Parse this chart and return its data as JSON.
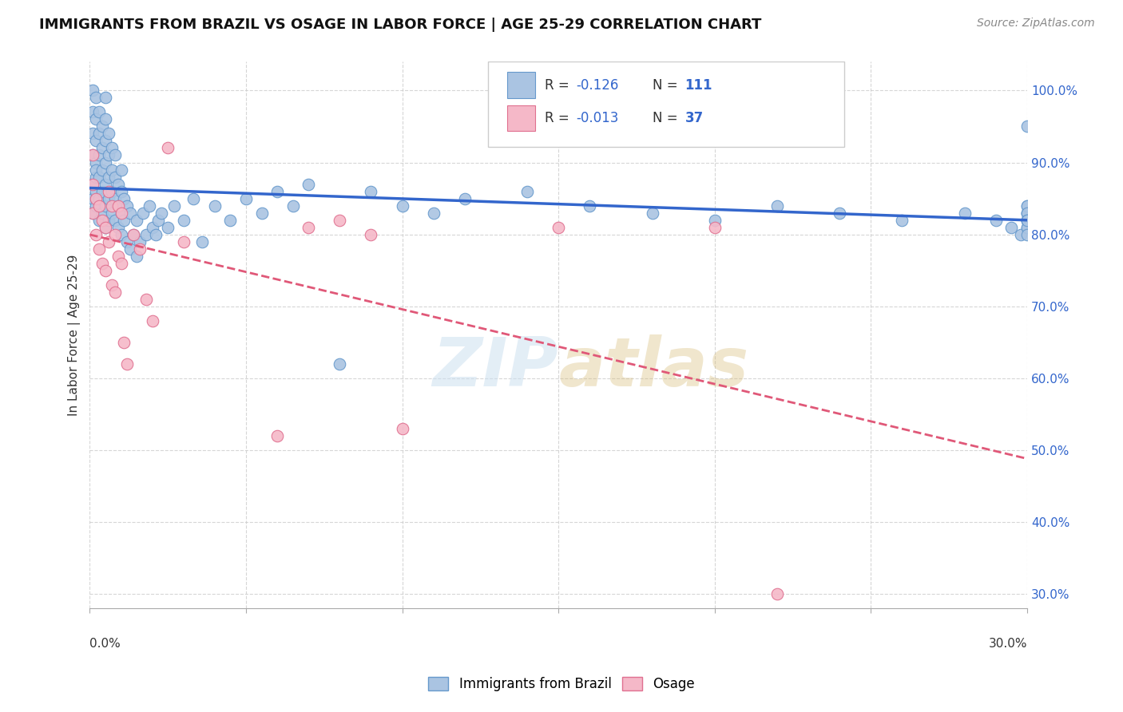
{
  "title": "IMMIGRANTS FROM BRAZIL VS OSAGE IN LABOR FORCE | AGE 25-29 CORRELATION CHART",
  "source": "Source: ZipAtlas.com",
  "ylabel": "In Labor Force | Age 25-29",
  "xlim": [
    0.0,
    0.3
  ],
  "ylim": [
    0.28,
    1.04
  ],
  "yticks": [
    0.3,
    0.4,
    0.5,
    0.6,
    0.7,
    0.8,
    0.9,
    1.0
  ],
  "ytick_labels": [
    "30.0%",
    "40.0%",
    "50.0%",
    "60.0%",
    "70.0%",
    "80.0%",
    "90.0%",
    "100.0%"
  ],
  "xticks": [
    0.0,
    0.05,
    0.1,
    0.15,
    0.2,
    0.25,
    0.3
  ],
  "brazil_color": "#aac4e2",
  "brazil_edge": "#6699cc",
  "osage_color": "#f5b8c8",
  "osage_edge": "#e07090",
  "brazil_line_color": "#3366cc",
  "osage_line_color": "#e05878",
  "R_brazil": -0.126,
  "N_brazil": 111,
  "R_osage": -0.013,
  "N_osage": 37,
  "legend_labels": [
    "Immigrants from Brazil",
    "Osage"
  ],
  "watermark_color": "#cce0f0",
  "brazil_x": [
    0.001,
    0.001,
    0.001,
    0.001,
    0.001,
    0.001,
    0.001,
    0.002,
    0.002,
    0.002,
    0.002,
    0.002,
    0.002,
    0.002,
    0.002,
    0.003,
    0.003,
    0.003,
    0.003,
    0.003,
    0.003,
    0.004,
    0.004,
    0.004,
    0.004,
    0.004,
    0.005,
    0.005,
    0.005,
    0.005,
    0.005,
    0.005,
    0.005,
    0.006,
    0.006,
    0.006,
    0.006,
    0.006,
    0.007,
    0.007,
    0.007,
    0.007,
    0.008,
    0.008,
    0.008,
    0.008,
    0.009,
    0.009,
    0.009,
    0.01,
    0.01,
    0.01,
    0.01,
    0.011,
    0.011,
    0.012,
    0.012,
    0.013,
    0.013,
    0.014,
    0.015,
    0.015,
    0.016,
    0.017,
    0.018,
    0.019,
    0.02,
    0.021,
    0.022,
    0.023,
    0.025,
    0.027,
    0.03,
    0.033,
    0.036,
    0.04,
    0.045,
    0.05,
    0.055,
    0.06,
    0.065,
    0.07,
    0.08,
    0.09,
    0.1,
    0.11,
    0.12,
    0.14,
    0.16,
    0.18,
    0.2,
    0.22,
    0.24,
    0.26,
    0.28,
    0.29,
    0.295,
    0.298,
    0.3,
    0.3,
    0.3,
    0.3,
    0.3,
    0.3,
    0.3,
    0.3,
    0.3,
    0.3,
    0.3,
    0.3,
    0.3
  ],
  "brazil_y": [
    0.87,
    0.91,
    0.94,
    0.97,
    1.0,
    0.83,
    0.85,
    0.88,
    0.9,
    0.93,
    0.96,
    0.99,
    0.84,
    0.86,
    0.89,
    0.82,
    0.85,
    0.88,
    0.91,
    0.94,
    0.97,
    0.83,
    0.86,
    0.89,
    0.92,
    0.95,
    0.81,
    0.84,
    0.87,
    0.9,
    0.93,
    0.96,
    0.99,
    0.82,
    0.85,
    0.88,
    0.91,
    0.94,
    0.83,
    0.86,
    0.89,
    0.92,
    0.82,
    0.85,
    0.88,
    0.91,
    0.81,
    0.84,
    0.87,
    0.8,
    0.83,
    0.86,
    0.89,
    0.82,
    0.85,
    0.79,
    0.84,
    0.78,
    0.83,
    0.8,
    0.77,
    0.82,
    0.79,
    0.83,
    0.8,
    0.84,
    0.81,
    0.8,
    0.82,
    0.83,
    0.81,
    0.84,
    0.82,
    0.85,
    0.79,
    0.84,
    0.82,
    0.85,
    0.83,
    0.86,
    0.84,
    0.87,
    0.62,
    0.86,
    0.84,
    0.83,
    0.85,
    0.86,
    0.84,
    0.83,
    0.82,
    0.84,
    0.83,
    0.82,
    0.83,
    0.82,
    0.81,
    0.8,
    0.82,
    0.81,
    0.83,
    0.82,
    0.84,
    0.83,
    0.95,
    0.84,
    0.83,
    0.82,
    0.81,
    0.8,
    0.82
  ],
  "osage_x": [
    0.001,
    0.001,
    0.001,
    0.002,
    0.002,
    0.003,
    0.003,
    0.004,
    0.004,
    0.005,
    0.005,
    0.006,
    0.006,
    0.007,
    0.007,
    0.008,
    0.008,
    0.009,
    0.009,
    0.01,
    0.01,
    0.011,
    0.012,
    0.014,
    0.016,
    0.018,
    0.02,
    0.025,
    0.03,
    0.06,
    0.07,
    0.08,
    0.09,
    0.1,
    0.15,
    0.2,
    0.22
  ],
  "osage_y": [
    0.83,
    0.87,
    0.91,
    0.8,
    0.85,
    0.78,
    0.84,
    0.76,
    0.82,
    0.75,
    0.81,
    0.79,
    0.86,
    0.73,
    0.84,
    0.72,
    0.8,
    0.77,
    0.84,
    0.76,
    0.83,
    0.65,
    0.62,
    0.8,
    0.78,
    0.71,
    0.68,
    0.92,
    0.79,
    0.52,
    0.81,
    0.82,
    0.8,
    0.53,
    0.81,
    0.81,
    0.3
  ]
}
